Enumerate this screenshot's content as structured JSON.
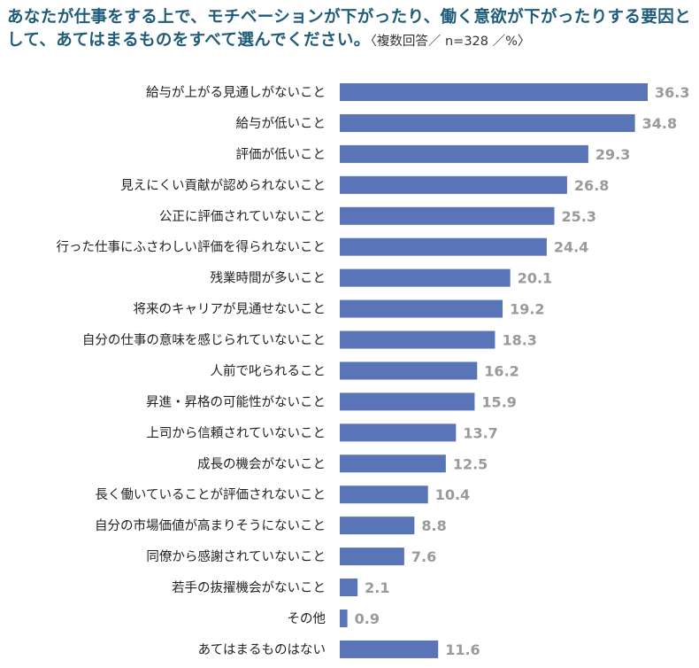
{
  "header": {
    "title": "あなたが仕事をする上で、モチベーションが下がったり、働く意欲が下がったりする要因として、あてはまるものをすべて選んでください。",
    "note": "〈複数回答／ n=328 ／%〉"
  },
  "colors": {
    "bar": "#5a74b8",
    "title": "#1f5c78",
    "value_label": "#9a9a9a"
  },
  "chart_data": {
    "type": "bar",
    "orientation": "horizontal",
    "title": "あなたが仕事をする上で、モチベーションが下がったり、働く意欲が下がったりする要因として、あてはまるものをすべて選んでください。",
    "note": "〈複数回答／ n=328 ／%〉",
    "categories": [
      "給与が上がる見通しがないこと",
      "給与が低いこと",
      "評価が低いこと",
      "見えにくい貢献が認められないこと",
      "公正に評価されていないこと",
      "行った仕事にふさわしい評価を得られないこと",
      "残業時間が多いこと",
      "将来のキャリアが見通せないこと",
      "自分の仕事の意味を感じられていないこと",
      "人前で叱られること",
      "昇進・昇格の可能性がないこと",
      "上司から信頼されていないこと",
      "成長の機会がないこと",
      "長く働いていることが評価されないこと",
      "自分の市場価値が高まりそうにないこと",
      "同僚から感謝されていないこと",
      "若手の抜擢機会がないこと",
      "その他",
      "あてはまるものはない"
    ],
    "values": [
      36.3,
      34.8,
      29.3,
      26.8,
      25.3,
      24.4,
      20.1,
      19.2,
      18.3,
      16.2,
      15.9,
      13.7,
      12.5,
      10.4,
      8.8,
      7.6,
      2.1,
      0.9,
      11.6
    ],
    "value_labels": [
      "36.3",
      "34.8",
      "29.3",
      "26.8",
      "25.3",
      "24.4",
      "20.1",
      "19.2",
      "18.3",
      "16.2",
      "15.9",
      "13.7",
      "12.5",
      "10.4",
      "8.8",
      "7.6",
      "2.1",
      "0.9",
      "11.6"
    ],
    "xlim": [
      0,
      36.3
    ],
    "grid": false,
    "legend": "none"
  }
}
